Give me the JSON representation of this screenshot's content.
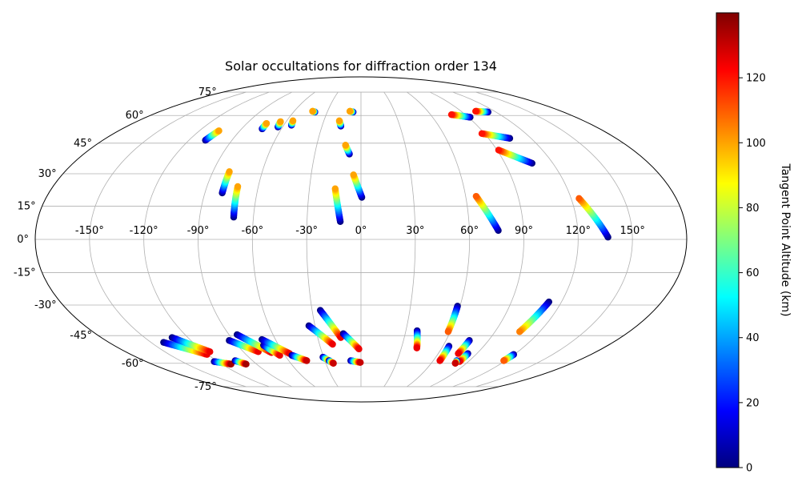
{
  "chart_data": {
    "type": "scatter",
    "projection": "mollweide",
    "title": "Solar occultations for diffraction order 134",
    "grid": true,
    "x_tick_labels": [
      "-150°",
      "-120°",
      "-90°",
      "-60°",
      "-30°",
      "0°",
      "30°",
      "60°",
      "90°",
      "120°",
      "150°"
    ],
    "x_ticks": [
      -150,
      -120,
      -90,
      -60,
      -30,
      0,
      30,
      60,
      90,
      120,
      150
    ],
    "y_tick_labels": [
      "-75°",
      "-60°",
      "-45°",
      "-30°",
      "-15°",
      "0°",
      "15°",
      "30°",
      "45°",
      "60°",
      "75°"
    ],
    "y_ticks": [
      -75,
      -60,
      -45,
      -30,
      -15,
      0,
      15,
      30,
      45,
      60,
      75
    ],
    "xlim": [
      -180,
      180
    ],
    "ylim": [
      -90,
      90
    ],
    "colorbar": {
      "label": "Tangent Point Altitude (km)",
      "range": [
        0,
        140
      ],
      "ticks": [
        0,
        20,
        40,
        60,
        80,
        100,
        120
      ],
      "tick_labels": [
        "0",
        "20",
        "40",
        "60",
        "80",
        "100",
        "120"
      ],
      "colormap": "jet",
      "colors": [
        "#00007f",
        "#0000ff",
        "#007fff",
        "#00ffff",
        "#7fff7f",
        "#ffff00",
        "#ff7f00",
        "#ff0000",
        "#7f0000"
      ]
    },
    "tracks": [
      {
        "start": [
          -108.5,
          46.5
        ],
        "end": [
          -105.5,
          51.5
        ],
        "alt": [
          0,
          100
        ]
      },
      {
        "start": [
          -74.5,
          52.5
        ],
        "end": [
          -74.5,
          55.5
        ],
        "alt": [
          0,
          100
        ]
      },
      {
        "start": [
          -63.5,
          53.5
        ],
        "end": [
          -64.5,
          56.5
        ],
        "alt": [
          0,
          100
        ]
      },
      {
        "start": [
          -54.0,
          54.5
        ],
        "end": [
          -55.0,
          57.0
        ],
        "alt": [
          0,
          100
        ]
      },
      {
        "start": [
          -41.0,
          62.0
        ],
        "end": [
          -43.5,
          62.5
        ],
        "alt": [
          0,
          100
        ]
      },
      {
        "start": [
          -15.5,
          54.0
        ],
        "end": [
          -17.5,
          57.0
        ],
        "alt": [
          0,
          100
        ]
      },
      {
        "start": [
          -7.0,
          62.0
        ],
        "end": [
          -10.0,
          62.5
        ],
        "alt": [
          0,
          100
        ]
      },
      {
        "start": [
          -7.5,
          39.5
        ],
        "end": [
          -10.5,
          44.0
        ],
        "alt": [
          0,
          100
        ]
      },
      {
        "start": [
          91.5,
          59.0
        ],
        "end": [
          78.0,
          60.5
        ],
        "alt": [
          0,
          120
        ]
      },
      {
        "start": [
          113.0,
          62.0
        ],
        "end": [
          103.0,
          62.5
        ],
        "alt": [
          0,
          120
        ]
      },
      {
        "start": [
          105.0,
          47.5
        ],
        "end": [
          88.0,
          50.0
        ],
        "alt": [
          0,
          120
        ]
      },
      {
        "start": [
          107.0,
          35.0
        ],
        "end": [
          91.0,
          41.5
        ],
        "alt": [
          0,
          120
        ]
      },
      {
        "start": [
          -80.0,
          21.0
        ],
        "end": [
          -80.0,
          31.0
        ],
        "alt": [
          0,
          100
        ]
      },
      {
        "start": [
          -71.0,
          10.0
        ],
        "end": [
          -72.0,
          24.0
        ],
        "alt": [
          0,
          100
        ]
      },
      {
        "start": [
          -11.5,
          8.0
        ],
        "end": [
          -15.0,
          23.0
        ],
        "alt": [
          0,
          100
        ]
      },
      {
        "start": [
          0.5,
          19.0
        ],
        "end": [
          -4.5,
          29.5
        ],
        "alt": [
          0,
          100
        ]
      },
      {
        "start": [
          76.0,
          4.0
        ],
        "end": [
          66.0,
          19.5
        ],
        "alt": [
          0,
          110
        ]
      },
      {
        "start": [
          136.5,
          1.0
        ],
        "end": [
          124.5,
          18.5
        ],
        "alt": [
          0,
          110
        ]
      },
      {
        "start": [
          -141.0,
          -48.5
        ],
        "end": [
          -120.5,
          -55.0
        ],
        "alt": [
          0,
          125
        ]
      },
      {
        "start": [
          -131.0,
          -46.0
        ],
        "end": [
          -115.5,
          -53.5
        ],
        "alt": [
          0,
          125
        ]
      },
      {
        "start": [
          -123.0,
          -59.0
        ],
        "end": [
          -112.0,
          -60.5
        ],
        "alt": [
          0,
          135
        ]
      },
      {
        "start": [
          -104.5,
          -58.5
        ],
        "end": [
          -99.0,
          -60.5
        ],
        "alt": [
          0,
          135
        ]
      },
      {
        "start": [
          -93.0,
          -47.5
        ],
        "end": [
          -78.5,
          -53.5
        ],
        "alt": [
          0,
          125
        ]
      },
      {
        "start": [
          -84.5,
          -44.5
        ],
        "end": [
          -69.0,
          -54.0
        ],
        "alt": [
          0,
          125
        ]
      },
      {
        "start": [
          -71.0,
          -50.0
        ],
        "end": [
          -64.0,
          -55.5
        ],
        "alt": [
          0,
          125
        ]
      },
      {
        "start": [
          -69.5,
          -47.0
        ],
        "end": [
          -55.5,
          -54.5
        ],
        "alt": [
          0,
          125
        ]
      },
      {
        "start": [
          -54.5,
          -55.5
        ],
        "end": [
          -45.0,
          -58.5
        ],
        "alt": [
          0,
          130
        ]
      },
      {
        "start": [
          -34.0,
          -40.0
        ],
        "end": [
          -20.5,
          -49.5
        ],
        "alt": [
          0,
          125
        ]
      },
      {
        "start": [
          -25.0,
          -32.5
        ],
        "end": [
          -14.0,
          -46.0
        ],
        "alt": [
          0,
          125
        ]
      },
      {
        "start": [
          -30.5,
          -56.5
        ],
        "end": [
          -25.5,
          -59.0
        ],
        "alt": [
          0,
          130
        ]
      },
      {
        "start": [
          -26.5,
          -58.5
        ],
        "end": [
          -23.5,
          -60.0
        ],
        "alt": [
          0,
          130
        ]
      },
      {
        "start": [
          -12.0,
          -44.0
        ],
        "end": [
          -1.5,
          -52.0
        ],
        "alt": [
          0,
          125
        ]
      },
      {
        "start": [
          -8.5,
          -58.5
        ],
        "end": [
          -0.5,
          -59.5
        ],
        "alt": [
          0,
          130
        ]
      },
      {
        "start": [
          37.5,
          -42.5
        ],
        "end": [
          41.5,
          -51.5
        ],
        "alt": [
          0,
          125
        ]
      },
      {
        "start": [
          58.5,
          -30.5
        ],
        "end": [
          58.5,
          -43.0
        ],
        "alt": [
          0,
          110
        ]
      },
      {
        "start": [
          64.5,
          -50.5
        ],
        "end": [
          65.5,
          -58.5
        ],
        "alt": [
          0,
          125
        ]
      },
      {
        "start": [
          76.5,
          -47.5
        ],
        "end": [
          75.5,
          -54.5
        ],
        "alt": [
          0,
          125
        ]
      },
      {
        "start": [
          83.0,
          -54.5
        ],
        "end": [
          82.5,
          -59.0
        ],
        "alt": [
          0,
          125
        ]
      },
      {
        "start": [
          79.5,
          -58.5
        ],
        "end": [
          80.5,
          -60.0
        ],
        "alt": [
          0,
          130
        ]
      },
      {
        "start": [
          112.5,
          -28.5
        ],
        "end": [
          106.5,
          -43.0
        ],
        "alt": [
          0,
          105
        ]
      },
      {
        "start": [
          119.5,
          -55.0
        ],
        "end": [
          118.5,
          -58.5
        ],
        "alt": [
          0,
          110
        ]
      }
    ]
  }
}
